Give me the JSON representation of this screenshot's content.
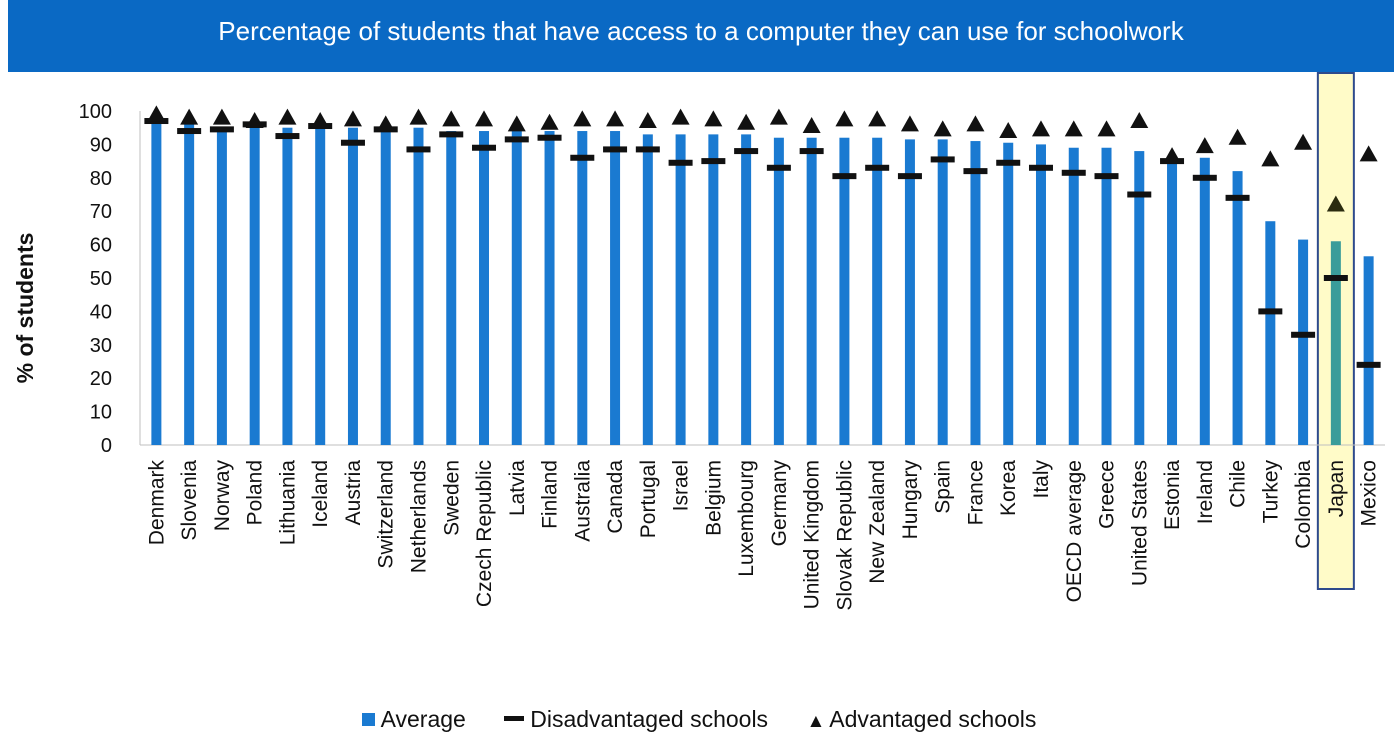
{
  "chart_data": {
    "type": "bar",
    "title": "Percentage of students that have access to a computer they can use for schoolwork",
    "ylabel": "% of students",
    "xlabel": "",
    "ylim": [
      0,
      100
    ],
    "yticks": [
      0,
      10,
      20,
      30,
      40,
      50,
      60,
      70,
      80,
      90,
      100
    ],
    "grid": false,
    "legend_position": "bottom",
    "categories": [
      "Denmark",
      "Slovenia",
      "Norway",
      "Poland",
      "Lithuania",
      "Iceland",
      "Austria",
      "Switzerland",
      "Netherlands",
      "Sweden",
      "Czech Republic",
      "Latvia",
      "Finland",
      "Australia",
      "Canada",
      "Portugal",
      "Israel",
      "Belgium",
      "Luxembourg",
      "Germany",
      "United Kingdom",
      "Slovak Republic",
      "New Zealand",
      "Hungary",
      "Spain",
      "France",
      "Korea",
      "Italy",
      "OECD average",
      "Greece",
      "United States",
      "Estonia",
      "Ireland",
      "Chile",
      "Turkey",
      "Colombia",
      "Japan",
      "Mexico"
    ],
    "highlighted_category": "Japan",
    "series": [
      {
        "name": "Average",
        "marker": "bar",
        "values": [
          97,
          96,
          95,
          96,
          95,
          95,
          95,
          95,
          95,
          94,
          94,
          94,
          94,
          94,
          94,
          93,
          93,
          93,
          93,
          92,
          92,
          92,
          92,
          91.5,
          91.5,
          91,
          90.5,
          90,
          89,
          89,
          88,
          86,
          86,
          82,
          67,
          61.5,
          61,
          56.5
        ]
      },
      {
        "name": "Disadvantaged schools",
        "marker": "dash",
        "values": [
          97,
          94,
          94.5,
          96,
          92.5,
          95.5,
          90.5,
          94.5,
          88.5,
          93,
          89,
          91.5,
          92,
          86,
          88.5,
          88.5,
          84.5,
          85,
          88,
          83,
          88,
          80.5,
          83,
          80.5,
          85.5,
          82,
          84.5,
          83,
          81.5,
          80.5,
          75,
          85,
          80,
          74,
          40,
          33,
          50,
          24
        ]
      },
      {
        "name": "Advantaged schools",
        "marker": "triangle",
        "values": [
          99,
          98,
          98,
          97,
          98,
          97,
          97.5,
          96,
          98,
          97.5,
          97.5,
          96,
          96.5,
          97.5,
          97.5,
          97,
          98,
          97.5,
          96.5,
          98,
          95.5,
          97.5,
          97.5,
          96,
          94.5,
          96,
          94,
          94.5,
          94.5,
          94.5,
          97,
          86.5,
          89.5,
          92,
          85.5,
          90.5,
          72,
          87
        ]
      }
    ],
    "colors": {
      "bar": "#1a7ad1",
      "highlight_bar": "#3a9c9a",
      "highlight_band": "#fffbc8",
      "highlight_border": "#2e4a8c",
      "marker": "#111111"
    }
  }
}
